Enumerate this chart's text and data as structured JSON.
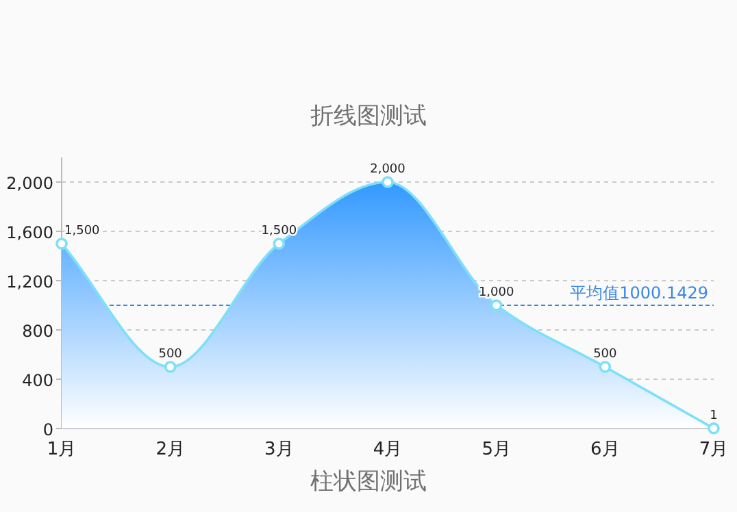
{
  "chart_data": {
    "type": "area",
    "title": "折线图测试",
    "xlabel": "柱状图测试",
    "categories": [
      "1月",
      "2月",
      "3月",
      "4月",
      "5月",
      "6月",
      "7月"
    ],
    "series": [
      {
        "color": "#7ee0f8",
        "values": [
          1500,
          500,
          1500,
          2000,
          1000,
          500,
          1
        ],
        "value_labels": [
          "1,500",
          "500",
          "1,500",
          "2,000",
          "1,000",
          "500",
          "1"
        ]
      }
    ],
    "ylim": [
      0,
      2200
    ],
    "yticks": [
      0,
      400,
      800,
      {
        "value": 1200,
        "label": "1,200"
      },
      {
        "value": 1600,
        "label": "1,600"
      },
      {
        "value": 2000,
        "label": "2,000"
      }
    ],
    "grid": "y",
    "marker": "circle",
    "ref_lines": [
      {
        "axis": "y",
        "value": 1000.1429,
        "label": "平均值1000.1429",
        "color": "#3a86e8",
        "line_style": "dashed"
      }
    ]
  }
}
